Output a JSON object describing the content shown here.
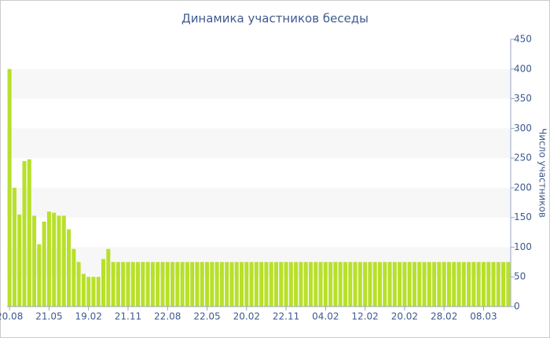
{
  "chart_data": {
    "type": "bar",
    "title": "Динамика участников беседы",
    "y_label": "Число участников",
    "categories": [
      "20.08",
      null,
      null,
      null,
      null,
      null,
      null,
      null,
      "21.05",
      null,
      null,
      null,
      null,
      null,
      null,
      null,
      "19.02",
      null,
      null,
      null,
      null,
      null,
      null,
      null,
      "21.11",
      null,
      null,
      null,
      null,
      null,
      null,
      null,
      "22.08",
      null,
      null,
      null,
      null,
      null,
      null,
      null,
      "22.05",
      null,
      null,
      null,
      null,
      null,
      null,
      null,
      "20.02",
      null,
      null,
      null,
      null,
      null,
      null,
      null,
      "22.11",
      null,
      null,
      null,
      null,
      null,
      null,
      null,
      "04.02",
      null,
      null,
      null,
      null,
      null,
      null,
      null,
      "12.02",
      null,
      null,
      null,
      null,
      null,
      null,
      null,
      "20.02",
      null,
      null,
      null,
      null,
      null,
      null,
      null,
      "28.02",
      null,
      null,
      null,
      null,
      null,
      null,
      null,
      "08.03",
      null,
      null,
      null,
      null,
      null
    ],
    "values": [
      400,
      200,
      155,
      245,
      248,
      153,
      105,
      143,
      160,
      158,
      153,
      153,
      130,
      97,
      75,
      55,
      50,
      50,
      50,
      80,
      97,
      75,
      75,
      75,
      75,
      75,
      75,
      75,
      75,
      75,
      75,
      75,
      75,
      75,
      75,
      75,
      75,
      75,
      75,
      75,
      75,
      75,
      75,
      75,
      75,
      75,
      75,
      75,
      75,
      75,
      75,
      75,
      75,
      75,
      75,
      75,
      75,
      75,
      75,
      75,
      75,
      75,
      75,
      75,
      75,
      75,
      75,
      75,
      75,
      75,
      75,
      75,
      75,
      75,
      75,
      75,
      75,
      75,
      75,
      75,
      75,
      75,
      75,
      75,
      75,
      75,
      75,
      75,
      75,
      75,
      75,
      75,
      75,
      75,
      75,
      75,
      75,
      75,
      75,
      75,
      75,
      75
    ],
    "color": "#b8e02a",
    "ylim": [
      0,
      450
    ],
    "yticks": [
      0,
      50,
      100,
      150,
      200,
      250,
      300,
      350,
      400,
      450
    ],
    "grid": "bands",
    "y_axis_side": "right"
  }
}
